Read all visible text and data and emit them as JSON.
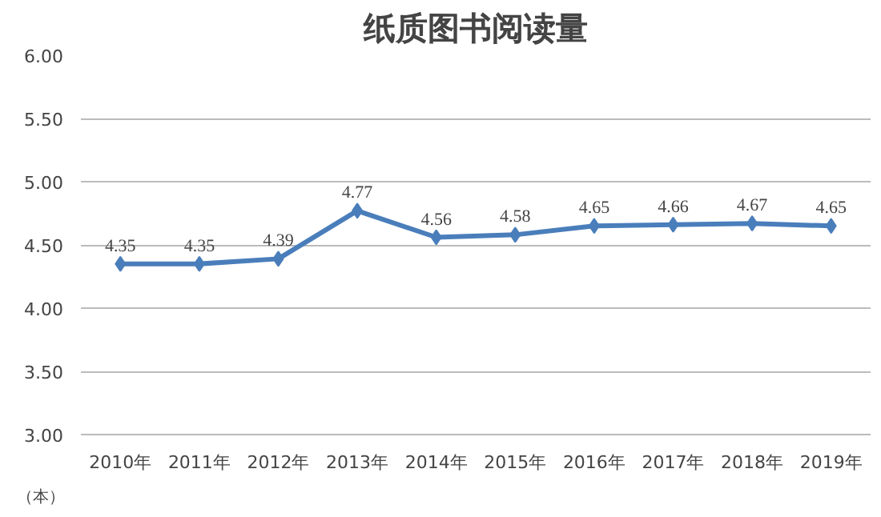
{
  "chart_data": {
    "type": "line",
    "title": "纸质图书阅读量",
    "categories": [
      "2010年",
      "2011年",
      "2012年",
      "2013年",
      "2014年",
      "2015年",
      "2016年",
      "2017年",
      "2018年",
      "2019年"
    ],
    "series": [
      {
        "color": "#4a7ebb",
        "values": [
          4.35,
          4.35,
          4.39,
          4.77,
          4.56,
          4.58,
          4.65,
          4.66,
          4.67,
          4.65
        ]
      }
    ],
    "ylim": [
      3,
      6
    ],
    "yticks": [
      {
        "value": 3,
        "label": "3.00"
      },
      {
        "value": 3.5,
        "label": "3.50"
      },
      {
        "value": 4,
        "label": "4.00"
      },
      {
        "value": 4.5,
        "label": "4.50"
      },
      {
        "value": 5,
        "label": "5.00"
      },
      {
        "value": 5.5,
        "label": "5.50"
      },
      {
        "value": 6,
        "label": "6.00"
      }
    ],
    "grid": "y",
    "marker": "diamond",
    "line_style": "solid",
    "data_labels": true,
    "annotations": [
      "（本）"
    ]
  }
}
